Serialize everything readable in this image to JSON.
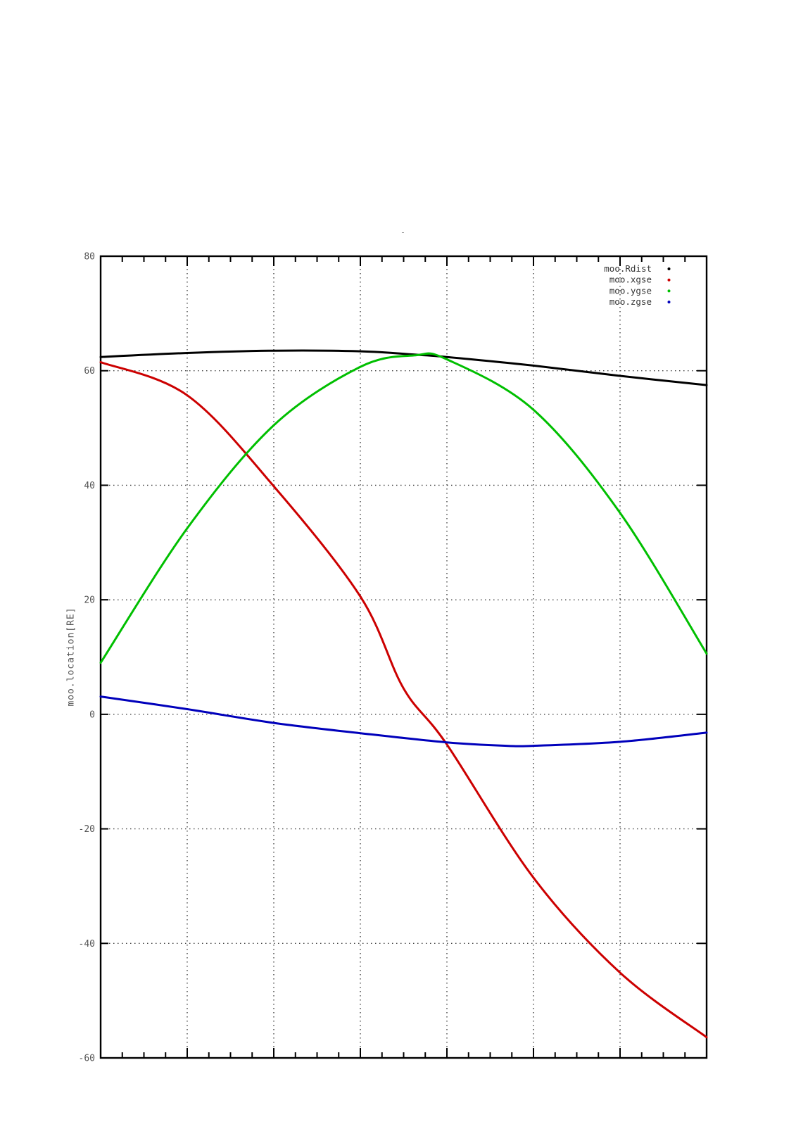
{
  "chart_data": {
    "type": "line",
    "title": "-",
    "xlabel": "",
    "ylabel": "moo.location[RE]",
    "ylim": [
      -60,
      80
    ],
    "y_ticks": [
      80,
      60,
      40,
      20,
      0,
      -20,
      -40,
      -60
    ],
    "x_axis": {
      "tick_labels": "none",
      "major_divisions": 7,
      "minor_per_major": 4
    },
    "grid": {
      "style": "dotted",
      "color": "#444444",
      "horizontal_at": [
        60,
        40,
        20,
        0,
        -20,
        -40
      ],
      "vertical": "major-x"
    },
    "frame_color": "#000000",
    "legend": {
      "position": "top-right-inside",
      "marker": "dot"
    },
    "series": [
      {
        "name": "moo.Rdist",
        "color": "#000000",
        "x": [
          0,
          0.143,
          0.286,
          0.429,
          0.52,
          0.571,
          0.714,
          0.857,
          1.0
        ],
        "y": [
          62.4,
          63.1,
          63.5,
          63.4,
          62.8,
          62.4,
          60.9,
          59.1,
          57.5
        ]
      },
      {
        "name": "moo.xgse",
        "color": "#cc0000",
        "x": [
          0,
          0.143,
          0.286,
          0.429,
          0.5,
          0.571,
          0.714,
          0.857,
          1.0
        ],
        "y": [
          61.5,
          55.7,
          39.8,
          20.5,
          4.5,
          -5.2,
          -28.5,
          -45.1,
          -56.4
        ]
      },
      {
        "name": "moo.ygse",
        "color": "#00bf00",
        "x": [
          0,
          0.143,
          0.286,
          0.429,
          0.52,
          0.571,
          0.714,
          0.857,
          1.0
        ],
        "y": [
          9.0,
          32.5,
          50.5,
          60.7,
          62.7,
          62.0,
          53.2,
          35.2,
          10.6
        ]
      },
      {
        "name": "moo.zgse",
        "color": "#0000bb",
        "x": [
          0,
          0.143,
          0.286,
          0.429,
          0.571,
          0.67,
          0.714,
          0.857,
          1.0
        ],
        "y": [
          3.1,
          0.9,
          -1.5,
          -3.3,
          -4.9,
          -5.5,
          -5.5,
          -4.8,
          -3.2
        ]
      }
    ]
  }
}
